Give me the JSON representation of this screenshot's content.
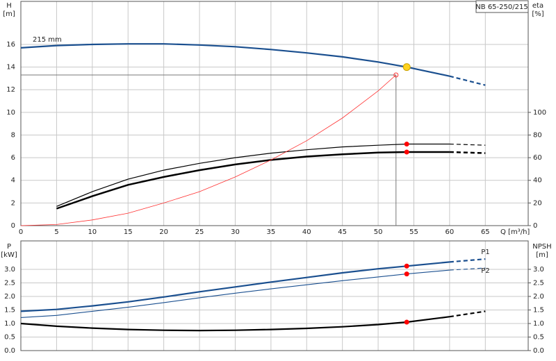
{
  "chart_data": [
    {
      "type": "line",
      "title": "NB 65-250/215",
      "x_label": "Q [m³/h]",
      "y_label": "H",
      "y_unit": "[m]",
      "y2_label": "eta",
      "y2_unit": "[%]",
      "xlim": [
        0,
        71
      ],
      "xticks": [
        0,
        5,
        10,
        15,
        20,
        25,
        30,
        35,
        40,
        45,
        50,
        55,
        60,
        65
      ],
      "show_xtick_labels": true,
      "ylim": [
        0,
        19.8
      ],
      "yticks": [
        0,
        2,
        4,
        6,
        8,
        10,
        12,
        14,
        16
      ],
      "y2lim": [
        0,
        198
      ],
      "y2ticks": [
        0,
        20,
        40,
        60,
        80,
        100
      ],
      "grid": true,
      "series": [
        {
          "name": "215 mm",
          "label_pos": "start",
          "color": "#1a4f8f",
          "width": 2.2,
          "dash": false,
          "x": [
            0,
            5,
            10,
            15,
            20,
            25,
            30,
            35,
            40,
            45,
            50,
            54,
            60
          ],
          "values": [
            15.7,
            15.9,
            16.0,
            16.05,
            16.05,
            15.95,
            15.8,
            15.55,
            15.25,
            14.9,
            14.45,
            14.0,
            13.2
          ]
        },
        {
          "color": "#1a4f8f",
          "width": 2.2,
          "dash": true,
          "x": [
            60,
            65
          ],
          "values": [
            13.2,
            12.4
          ]
        },
        {
          "color": "#000000",
          "width": 2.5,
          "dash": false,
          "axis": "y2",
          "x": [
            5,
            10,
            15,
            20,
            25,
            30,
            35,
            40,
            45,
            50,
            54,
            60
          ],
          "values": [
            15,
            26,
            36,
            43,
            49,
            54,
            58,
            61,
            63,
            64.5,
            65,
            65
          ]
        },
        {
          "color": "#000000",
          "width": 2.5,
          "dash": true,
          "axis": "y2",
          "x": [
            60,
            65
          ],
          "values": [
            65,
            64
          ]
        },
        {
          "color": "#000000",
          "width": 1.2,
          "dash": false,
          "axis": "y2",
          "x": [
            5,
            10,
            15,
            20,
            25,
            30,
            35,
            40,
            45,
            50,
            54,
            60
          ],
          "values": [
            17,
            30,
            41,
            49,
            55,
            60,
            64,
            67,
            69.5,
            71,
            72,
            72
          ]
        },
        {
          "color": "#000000",
          "width": 1.2,
          "dash": true,
          "axis": "y2",
          "x": [
            60,
            65
          ],
          "values": [
            72,
            71
          ]
        },
        {
          "color": "#ff3030",
          "width": 0.8,
          "dash": false,
          "x": [
            0,
            5,
            10,
            15,
            20,
            25,
            30,
            35,
            40,
            45,
            50,
            52.5
          ],
          "values": [
            0,
            0.1,
            0.5,
            1.1,
            2.0,
            3.0,
            4.3,
            5.8,
            7.5,
            9.5,
            11.9,
            13.3
          ]
        }
      ],
      "operating_point": {
        "x": 52.5,
        "y": 13.3
      },
      "points": [
        {
          "x": 54,
          "y": 14.0,
          "color": "#ffd21f"
        },
        {
          "x": 54,
          "y": 72,
          "axis": "y2",
          "color": "#ff0000"
        },
        {
          "x": 54,
          "y": 65,
          "axis": "y2",
          "color": "#ff0000"
        }
      ]
    },
    {
      "type": "line",
      "y_label": "P",
      "y_unit": "[kW]",
      "y2_label": "NPSH",
      "y2_unit": "[m]",
      "xlim": [
        0,
        71
      ],
      "xticks": [
        0,
        5,
        10,
        15,
        20,
        25,
        30,
        35,
        40,
        45,
        50,
        55,
        60,
        65
      ],
      "show_xtick_labels": false,
      "ylim": [
        0,
        4.05
      ],
      "yticks": [
        {
          "value": 0,
          "label": "0.0"
        },
        0.5,
        {
          "value": 1,
          "label": "1.0"
        },
        1.5,
        {
          "value": 2,
          "label": "2.0"
        },
        2.5,
        {
          "value": 3,
          "label": "3.0"
        }
      ],
      "y2lim": [
        0,
        4.05
      ],
      "y2ticks": [
        {
          "value": 0,
          "label": "0.0"
        },
        0.5,
        {
          "value": 1,
          "label": "1.0"
        },
        1.5,
        {
          "value": 2,
          "label": "2.0"
        },
        2.5,
        {
          "value": 3,
          "label": "3.0"
        }
      ],
      "grid": true,
      "series": [
        {
          "color": "#1a4f8f",
          "width": 2.2,
          "dash": false,
          "x": [
            0,
            5,
            10,
            15,
            20,
            25,
            30,
            35,
            40,
            45,
            50,
            54,
            60
          ],
          "values": [
            1.45,
            1.52,
            1.65,
            1.8,
            1.98,
            2.17,
            2.35,
            2.53,
            2.7,
            2.87,
            3.02,
            3.12,
            3.27
          ]
        },
        {
          "name": "P1",
          "label_pos": "above",
          "color": "#1a4f8f",
          "width": 2.2,
          "dash": true,
          "x": [
            60,
            65
          ],
          "values": [
            3.27,
            3.38
          ]
        },
        {
          "color": "#1a4f8f",
          "width": 1.1,
          "dash": false,
          "x": [
            0,
            5,
            10,
            15,
            20,
            25,
            30,
            35,
            40,
            45,
            50,
            54,
            60
          ],
          "values": [
            1.22,
            1.3,
            1.45,
            1.6,
            1.77,
            1.95,
            2.12,
            2.28,
            2.43,
            2.58,
            2.72,
            2.83,
            2.97
          ]
        },
        {
          "name": "P2",
          "label_pos": "below",
          "color": "#1a4f8f",
          "width": 1.1,
          "dash": true,
          "x": [
            60,
            65
          ],
          "values": [
            2.97,
            3.05
          ]
        },
        {
          "color": "#000000",
          "width": 2.2,
          "dash": false,
          "axis": "y2",
          "x": [
            0,
            5,
            10,
            15,
            20,
            25,
            30,
            35,
            40,
            45,
            50,
            54,
            60
          ],
          "values": [
            1.0,
            0.9,
            0.83,
            0.78,
            0.75,
            0.74,
            0.75,
            0.78,
            0.82,
            0.88,
            0.96,
            1.05,
            1.25
          ]
        },
        {
          "color": "#000000",
          "width": 2.2,
          "dash": true,
          "axis": "y2",
          "x": [
            60,
            65
          ],
          "values": [
            1.25,
            1.45
          ]
        }
      ],
      "points": [
        {
          "x": 54,
          "y": 3.12,
          "color": "#ff0000"
        },
        {
          "x": 54,
          "y": 2.83,
          "color": "#ff0000"
        },
        {
          "x": 54,
          "y": 1.05,
          "axis": "y2",
          "color": "#ff0000"
        }
      ]
    }
  ]
}
